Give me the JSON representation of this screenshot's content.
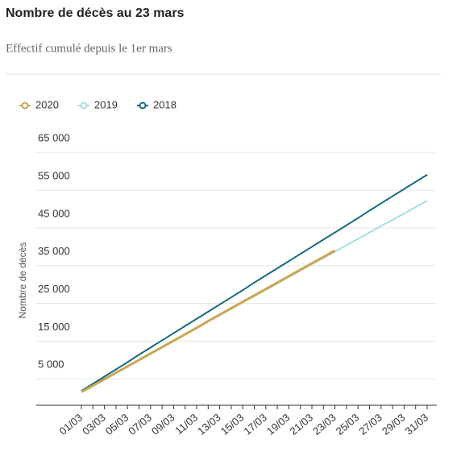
{
  "chart_data": {
    "type": "line",
    "title": "Nombre de décès au 23 mars",
    "subtitle": "Effectif cumulé depuis le 1er mars",
    "y_label": "Nombre de décès",
    "categories": [
      "01/03",
      null,
      "03/03",
      null,
      "05/03",
      null,
      "07/03",
      null,
      "09/03",
      null,
      "11/03",
      null,
      "13/03",
      null,
      "15/03",
      null,
      "17/03",
      null,
      "19/03",
      null,
      "21/03",
      null,
      "23/03",
      null,
      "25/03",
      null,
      "27/03",
      null,
      "29/03",
      null,
      "31/03"
    ],
    "series": [
      {
        "name": "2020",
        "color": "#cca552",
        "values": [
          1500,
          3200,
          4900,
          6600,
          8300,
          10000,
          11700,
          13400,
          15100,
          16800,
          18500,
          20300,
          22000,
          23700,
          25400,
          27100,
          28800,
          30500,
          32200,
          33900,
          35600,
          37300,
          39000,
          null,
          null,
          null,
          null,
          null,
          null,
          null,
          null
        ]
      },
      {
        "name": "2019",
        "color": "#a6dbe6",
        "values": [
          1700,
          3400,
          5100,
          6700,
          8400,
          10100,
          11800,
          13500,
          15200,
          16800,
          18500,
          20200,
          21900,
          23600,
          25300,
          26900,
          28600,
          30300,
          32000,
          33700,
          35400,
          37000,
          38700,
          40400,
          42100,
          43800,
          45500,
          47100,
          48800,
          50500,
          52200
        ]
      },
      {
        "name": "2018",
        "color": "#166b80",
        "values": [
          1800,
          3700,
          5600,
          7500,
          9400,
          11400,
          13300,
          15200,
          17100,
          19000,
          20900,
          22800,
          24700,
          26600,
          28500,
          30500,
          32400,
          34300,
          36200,
          38100,
          40000,
          41900,
          43800,
          45700,
          47600,
          49600,
          51500,
          53400,
          55300,
          57200,
          59100
        ]
      }
    ],
    "ylim": [
      -2000,
      70000
    ],
    "yticks": [
      {
        "value": 5000,
        "label": "5 000"
      },
      {
        "value": 15000,
        "label": "15 000"
      },
      {
        "value": 25000,
        "label": "25 000"
      },
      {
        "value": 35000,
        "label": "35 000"
      },
      {
        "value": 45000,
        "label": "45 000"
      },
      {
        "value": 55000,
        "label": "55 000"
      },
      {
        "value": 65000,
        "label": "65 000"
      }
    ],
    "grid": true
  }
}
